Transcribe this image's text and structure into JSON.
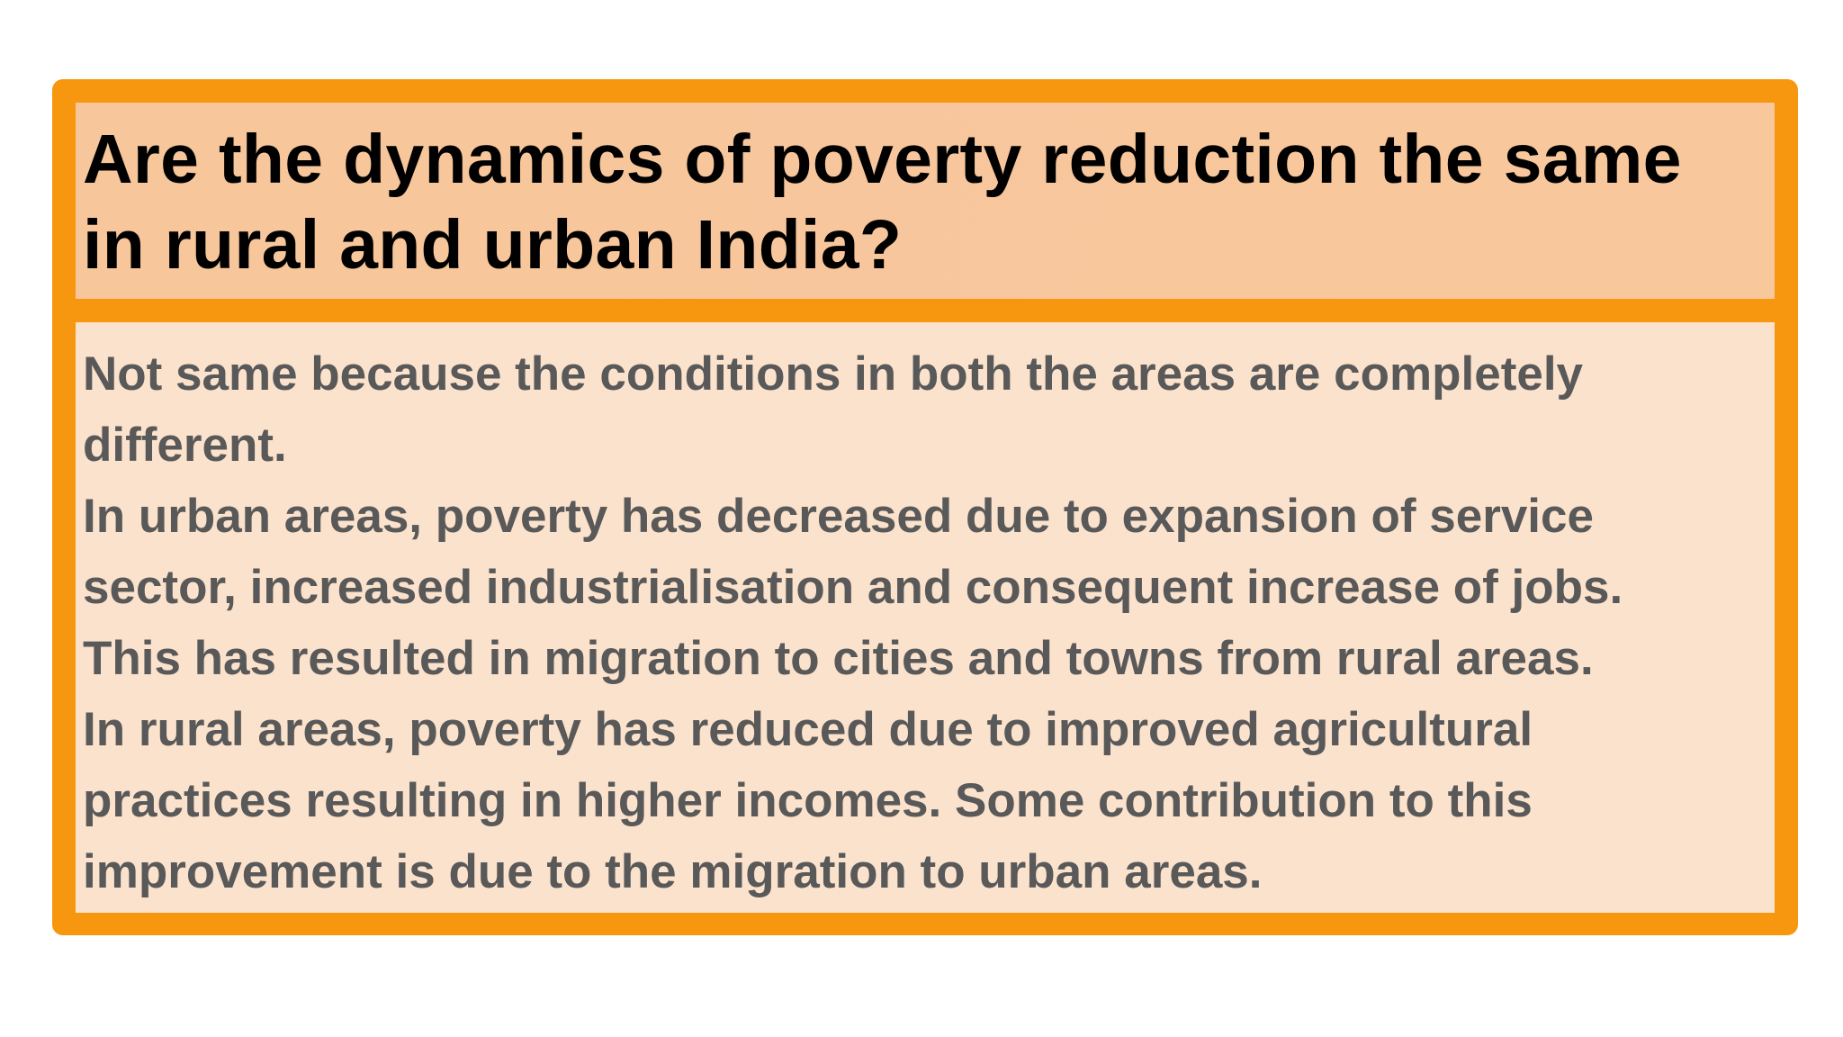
{
  "slide": {
    "title_lines": [
      "Are the dynamics of poverty reduction the same",
      "in rural and urban India?"
    ],
    "body_lines": [
      "Not same because the conditions in both the areas are completely",
      "different.",
      "In urban areas, poverty has decreased due to expansion of service",
      "sector, increased industrialisation and consequent increase of jobs.",
      "This has resulted in migration to cities and towns from rural areas.",
      "In rural areas, poverty has reduced due to improved agricultural",
      "practices resulting in higher incomes. Some contribution to this",
      "improvement is due to the migration to urban areas."
    ]
  },
  "colors": {
    "frame": "#f7960f",
    "title_background": "#f7c69b",
    "body_background": "#fbe2cc",
    "title_text": "#000000",
    "body_text": "#595959"
  }
}
